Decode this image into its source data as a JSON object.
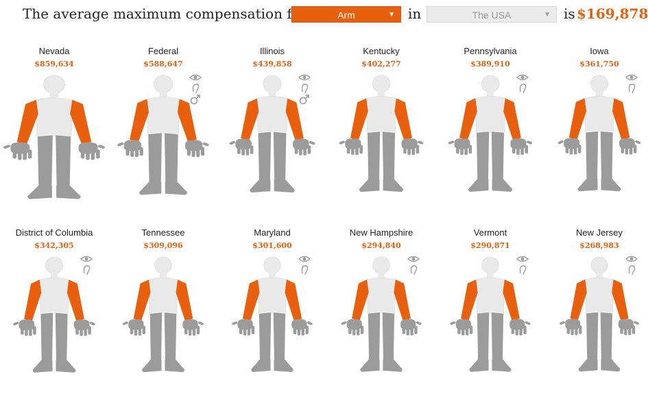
{
  "header": {
    "prefix": "The average maximum compensation for one",
    "in_label": "in",
    "is_label": "is",
    "total": "$169,878",
    "body_part": {
      "value": "Arm",
      "caret": "▼"
    },
    "location": {
      "value": "The USA",
      "caret": "▼"
    }
  },
  "colors": {
    "highlight": "#e8600d",
    "body": "#9b9b9b",
    "head": "#e9e9e9",
    "icon": "#9b9b9b"
  },
  "states": [
    {
      "name": "Nevada",
      "amount": "$859,634",
      "scale": 1.0,
      "icons": []
    },
    {
      "name": "Federal",
      "amount": "$588,647",
      "scale": 0.72,
      "icons": [
        "eye-icon",
        "ear-icon",
        "male-icon"
      ]
    },
    {
      "name": "Illinois",
      "amount": "$439,858",
      "scale": 0.56,
      "icons": [
        "eye-icon",
        "ear-icon",
        "male-icon"
      ]
    },
    {
      "name": "Kentucky",
      "amount": "$402,277",
      "scale": 0.52,
      "icons": []
    },
    {
      "name": "Pennsylvania",
      "amount": "$389,910",
      "scale": 0.51,
      "icons": [
        "eye-icon",
        "ear-icon"
      ]
    },
    {
      "name": "Iowa",
      "amount": "$361,750",
      "scale": 0.48,
      "icons": [
        "eye-icon",
        "ear-icon"
      ]
    },
    {
      "name": "District of Columbia",
      "amount": "$342,305",
      "scale": 0.46,
      "icons": [
        "eye-icon",
        "ear-icon"
      ]
    },
    {
      "name": "Tennessee",
      "amount": "$309,096",
      "scale": 0.43,
      "icons": []
    },
    {
      "name": "Maryland",
      "amount": "$301,600",
      "scale": 0.42,
      "icons": [
        "eye-icon",
        "ear-icon"
      ]
    },
    {
      "name": "New Hampshire",
      "amount": "$294,840",
      "scale": 0.41,
      "icons": [
        "eye-icon",
        "ear-icon"
      ]
    },
    {
      "name": "Vermont",
      "amount": "$290,871",
      "scale": 0.41,
      "icons": [
        "eye-icon",
        "ear-icon"
      ]
    },
    {
      "name": "New Jersey",
      "amount": "$268,983",
      "scale": 0.39,
      "icons": [
        "eye-icon",
        "ear-icon"
      ]
    }
  ]
}
